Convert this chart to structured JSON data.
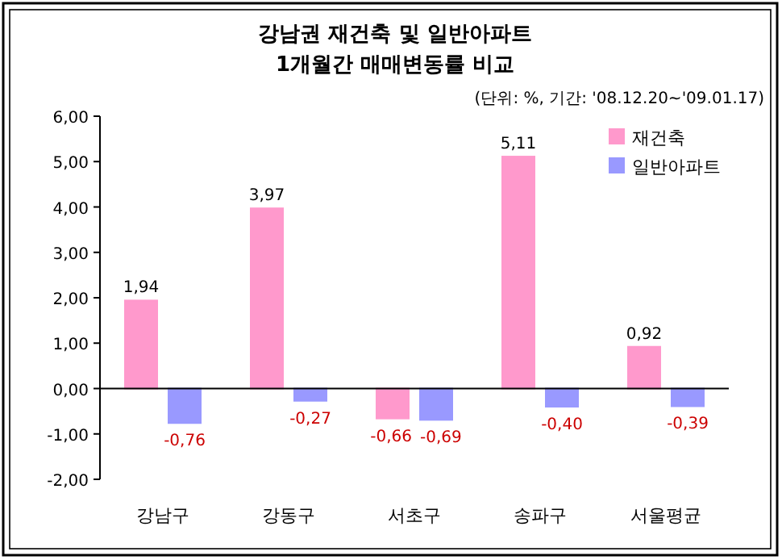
{
  "chart_data": {
    "type": "bar",
    "title": "강남권 재건축 및 일반아파트\n1개월간 매매변동률 비교",
    "subtitle": "(단위: %, 기간: '08.12.20~'09.01.17)",
    "categories": [
      "강남구",
      "강동구",
      "서초구",
      "송파구",
      "서울평균"
    ],
    "series": [
      {
        "name": "재건축",
        "color": "#ff99cc",
        "values": [
          1.94,
          3.97,
          -0.66,
          5.11,
          0.92
        ],
        "value_labels": [
          "1,94",
          "3,97",
          "-0,66",
          "5,11",
          "0,92"
        ]
      },
      {
        "name": "일반아파트",
        "color": "#9999ff",
        "values": [
          -0.76,
          -0.27,
          -0.69,
          -0.4,
          -0.39
        ],
        "value_labels": [
          "-0,76",
          "-0,27",
          "-0,69",
          "-0,40",
          "-0,39"
        ]
      }
    ],
    "ylim": [
      -2,
      6
    ],
    "yticks": [
      {
        "value": -2,
        "label": "-2,00"
      },
      {
        "value": -1,
        "label": "-1,00"
      },
      {
        "value": 0,
        "label": "0,00"
      },
      {
        "value": 1,
        "label": "1,00"
      },
      {
        "value": 2,
        "label": "2,00"
      },
      {
        "value": 3,
        "label": "3,00"
      },
      {
        "value": 4,
        "label": "4,00"
      },
      {
        "value": 5,
        "label": "5,00"
      },
      {
        "value": 6,
        "label": "6,00"
      }
    ],
    "legend": "top right"
  }
}
